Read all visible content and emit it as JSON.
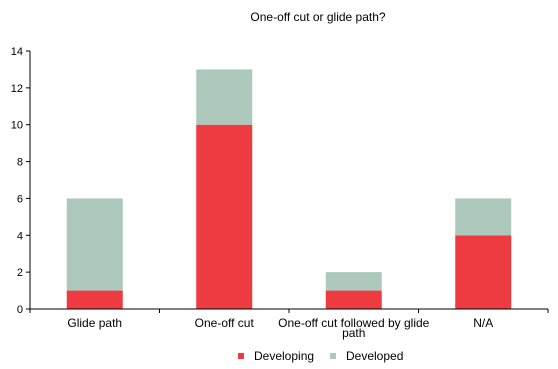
{
  "chart_data": {
    "type": "bar",
    "stacked": true,
    "title": "One-off cut or glide path?",
    "xlabel": "",
    "ylabel": "",
    "categories": [
      "Glide path",
      "One-off cut",
      "One-off cut followed by glide path",
      "N/A"
    ],
    "category_lines": [
      [
        "Glide path"
      ],
      [
        "One-off cut"
      ],
      [
        "One-off cut followed by glide",
        "path"
      ],
      [
        "N/A"
      ]
    ],
    "series": [
      {
        "name": "Developing",
        "values": [
          1,
          10,
          1,
          4
        ],
        "color": "#ee3b41"
      },
      {
        "name": "Developed",
        "values": [
          5,
          3,
          1,
          2
        ],
        "color": "#acc8bb"
      }
    ],
    "ylim": [
      0,
      14
    ],
    "yticks": [
      0,
      2,
      4,
      6,
      8,
      10,
      12,
      14
    ],
    "grid": false,
    "legend_position": "bottom-center"
  }
}
